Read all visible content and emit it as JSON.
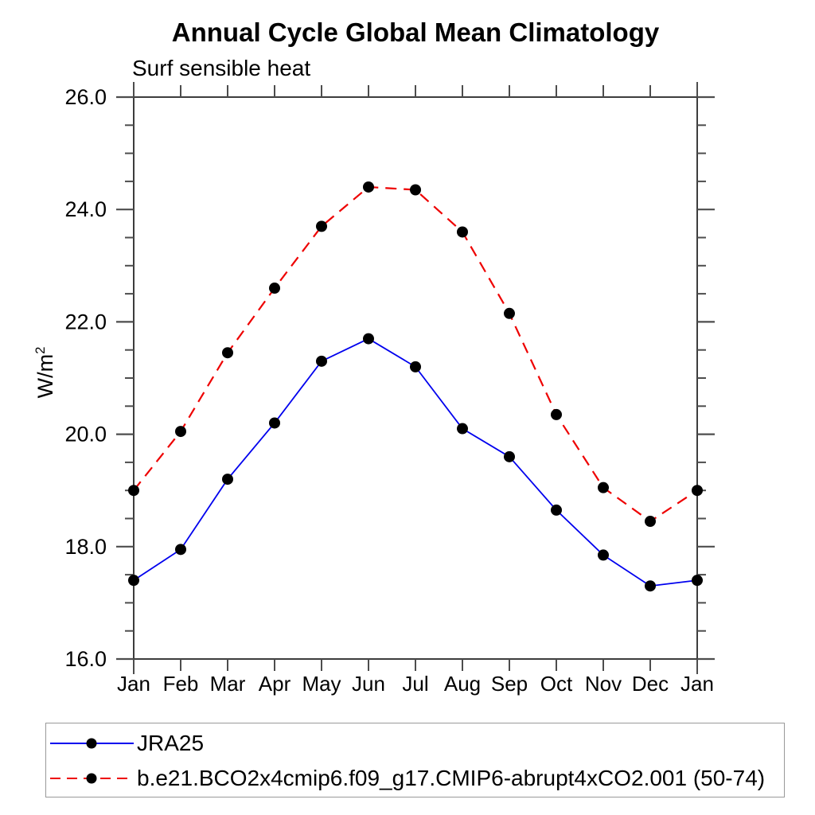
{
  "title": "Annual Cycle Global Mean Climatology",
  "subtitle": "Surf sensible heat",
  "y_axis": {
    "label_base": "W/m",
    "label_sup": "2",
    "tick_labels": [
      "16.0",
      "18.0",
      "20.0",
      "22.0",
      "24.0",
      "26.0"
    ]
  },
  "legend": {
    "entries": [
      {
        "label": "JRA25",
        "line_color": "#0000ee",
        "line_style": "solid",
        "marker_color": "#000000"
      },
      {
        "label": "b.e21.BCO2x4cmip6.f09_g17.CMIP6-abrupt4xCO2.001 (50-74)",
        "line_color": "#ee0000",
        "line_style": "dashed",
        "marker_color": "#000000"
      }
    ]
  },
  "colors": {
    "frame": "#3d3d3d",
    "tick": "#4d4d4d",
    "text": "#000000",
    "series_blue": "#0000ee",
    "series_red": "#ee0000",
    "marker": "#000000",
    "legend_border": "#999999",
    "background": "#ffffff"
  },
  "chart_data": {
    "type": "line",
    "title": "Annual Cycle Global Mean Climatology",
    "subtitle": "Surf sensible heat",
    "ylabel": "W/m²",
    "xlabel": "",
    "x_categories": [
      "Jan",
      "Feb",
      "Mar",
      "Apr",
      "May",
      "Jun",
      "Jul",
      "Aug",
      "Sep",
      "Oct",
      "Nov",
      "Dec",
      "Jan"
    ],
    "series": [
      {
        "name": "JRA25",
        "color": "#0000ee",
        "style": "solid",
        "marker": "filled-circle",
        "marker_color": "#000000",
        "values": [
          17.4,
          17.95,
          19.2,
          20.2,
          21.3,
          21.7,
          21.2,
          20.1,
          19.6,
          18.65,
          17.85,
          17.3,
          17.4
        ]
      },
      {
        "name": "b.e21.BCO2x4cmip6.f09_g17.CMIP6-abrupt4xCO2.001 (50-74)",
        "color": "#ee0000",
        "style": "dashed",
        "marker": "filled-circle",
        "marker_color": "#000000",
        "values": [
          19.0,
          20.05,
          21.45,
          22.6,
          23.7,
          24.4,
          24.35,
          23.6,
          22.15,
          20.35,
          19.05,
          18.45,
          19.0
        ]
      }
    ],
    "ylim": [
      16.0,
      26.0
    ],
    "ytick_major": [
      16.0,
      18.0,
      20.0,
      22.0,
      24.0,
      26.0
    ],
    "ytick_labels": [
      "16.0",
      "18.0",
      "20.0",
      "22.0",
      "24.0",
      "26.0"
    ],
    "ytick_minor_step": 0.5,
    "grid": false,
    "legend_position": "bottom-left"
  }
}
